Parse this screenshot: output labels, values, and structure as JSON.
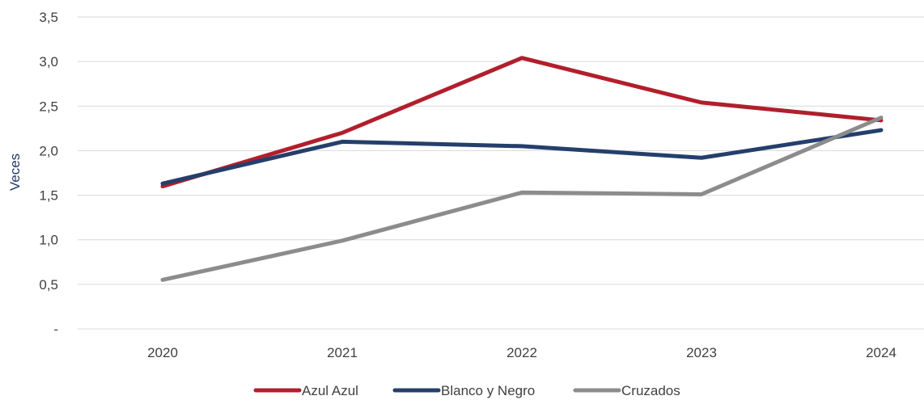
{
  "chart_data": {
    "type": "line",
    "categories": [
      "2020",
      "2021",
      "2022",
      "2023",
      "2024"
    ],
    "series": [
      {
        "name": "Azul Azul",
        "values": [
          1.6,
          2.2,
          3.04,
          2.54,
          2.34
        ],
        "color": "#b11f2c"
      },
      {
        "name": "Blanco y Negro",
        "values": [
          1.63,
          2.1,
          2.05,
          1.92,
          2.23
        ],
        "color": "#253f6c"
      },
      {
        "name": "Cruzados",
        "values": [
          0.55,
          0.99,
          1.53,
          1.51,
          2.37
        ],
        "color": "#8c8c8c"
      }
    ],
    "ylabel": "Veces",
    "ylim": [
      0,
      3.5
    ],
    "yticks": [
      "-",
      "0,5",
      "1,0",
      "1,5",
      "2,0",
      "2,5",
      "3,0",
      "3,5"
    ],
    "grid": true,
    "legend": "bottom-center"
  }
}
